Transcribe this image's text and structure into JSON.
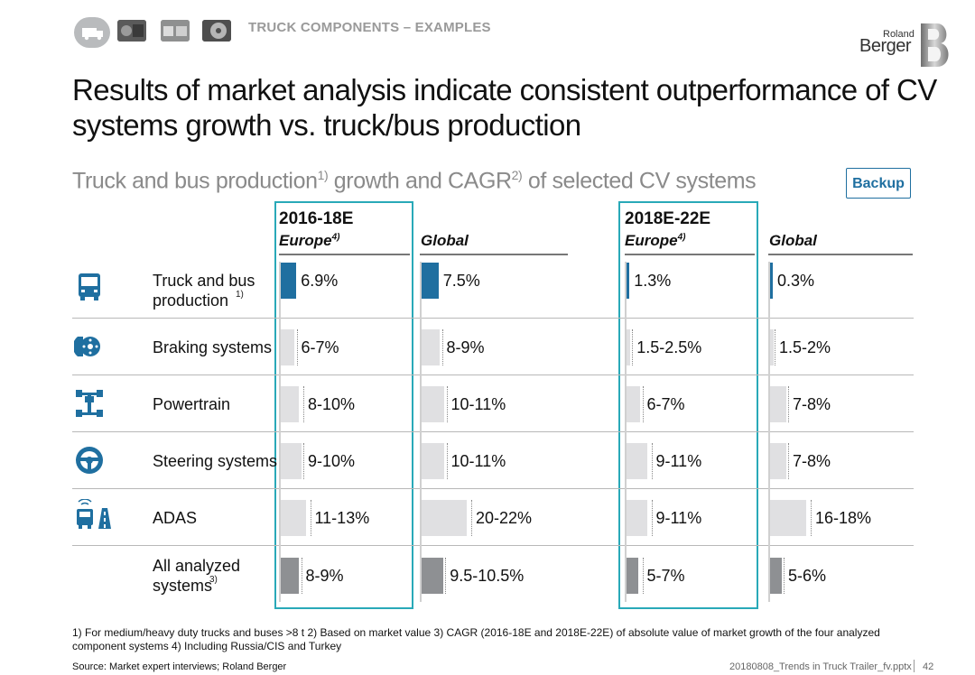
{
  "header": {
    "section_tag": "TRUCK COMPONENTS – EXAMPLES",
    "logo_line1": "Roland",
    "logo_line2": "Berger",
    "backup_label": "Backup"
  },
  "title": "Results of market analysis indicate consistent outperformance of CV systems growth vs. truck/bus production",
  "subtitle": {
    "part1": "Truck and bus production",
    "sup1": "1)",
    "part2": " growth and CAGR",
    "sup2": "2)",
    "part3": " of selected CV systems"
  },
  "colors": {
    "highlight": "#1f6fa0",
    "system": "#e0e0e2",
    "total": "#8e9093",
    "frame": "#29a9b8"
  },
  "chart_data": {
    "type": "bar",
    "periods": [
      {
        "label": "2016-18E",
        "regions": [
          "Europe",
          "Global"
        ]
      },
      {
        "label": "2018E-22E",
        "regions": [
          "Europe",
          "Global"
        ]
      }
    ],
    "region_note": "4)",
    "columns": [
      {
        "period": "2016-18E",
        "region": "Europe"
      },
      {
        "period": "2016-18E",
        "region": "Global"
      },
      {
        "period": "2018E-22E",
        "region": "Europe"
      },
      {
        "period": "2018E-22E",
        "region": "Global"
      }
    ],
    "rows": [
      {
        "label": "Truck and bus production",
        "note": "1)",
        "icon": "truck-icon",
        "kind": "highlight",
        "labels": [
          "6.9%",
          "7.5%",
          "1.3%",
          "0.3%"
        ],
        "low": [
          6.9,
          7.5,
          1.3,
          0.3
        ],
        "high": [
          6.9,
          7.5,
          1.3,
          0.3
        ]
      },
      {
        "label": "Braking systems",
        "note": "",
        "icon": "brake-icon",
        "kind": "system",
        "labels": [
          "6-7%",
          "8-9%",
          "1.5-2.5%",
          "1.5-2%"
        ],
        "low": [
          6,
          8,
          1.5,
          1.5
        ],
        "high": [
          7,
          9,
          2.5,
          2
        ]
      },
      {
        "label": "Powertrain",
        "note": "",
        "icon": "powertrain-icon",
        "kind": "system",
        "labels": [
          "8-10%",
          "10-11%",
          "6-7%",
          "7-8%"
        ],
        "low": [
          8,
          10,
          6,
          7
        ],
        "high": [
          10,
          11,
          7,
          8
        ]
      },
      {
        "label": "Steering systems",
        "note": "",
        "icon": "steering-wheel-icon",
        "kind": "system",
        "labels": [
          "9-10%",
          "10-11%",
          "9-11%",
          "7-8%"
        ],
        "low": [
          9,
          10,
          9,
          7
        ],
        "high": [
          10,
          11,
          11,
          8
        ]
      },
      {
        "label": "ADAS",
        "note": "",
        "icon": "adas-icon",
        "kind": "system",
        "labels": [
          "11-13%",
          "20-22%",
          "9-11%",
          "16-18%"
        ],
        "low": [
          11,
          20,
          9,
          16
        ],
        "high": [
          13,
          22,
          11,
          18
        ]
      },
      {
        "label": "All analyzed systems",
        "note": "3)",
        "icon": "",
        "kind": "total",
        "labels": [
          "8-9%",
          "9.5-10.5%",
          "5-7%",
          "5-6%"
        ],
        "low": [
          8,
          9.5,
          5,
          5
        ],
        "high": [
          9,
          10.5,
          7,
          6
        ]
      }
    ]
  },
  "footnotes": {
    "line1": "1) For medium/heavy duty trucks and buses >8 t    2) Based on market value    3) CAGR (2016-18E and 2018E-22E) of absolute value of market growth of the four analyzed",
    "line2": "component systems    4) Including Russia/CIS and Turkey",
    "source": "Source: Market expert interviews; Roland Berger",
    "file": "20180808_Trends in Truck Trailer_fv.pptx",
    "page": "42"
  }
}
